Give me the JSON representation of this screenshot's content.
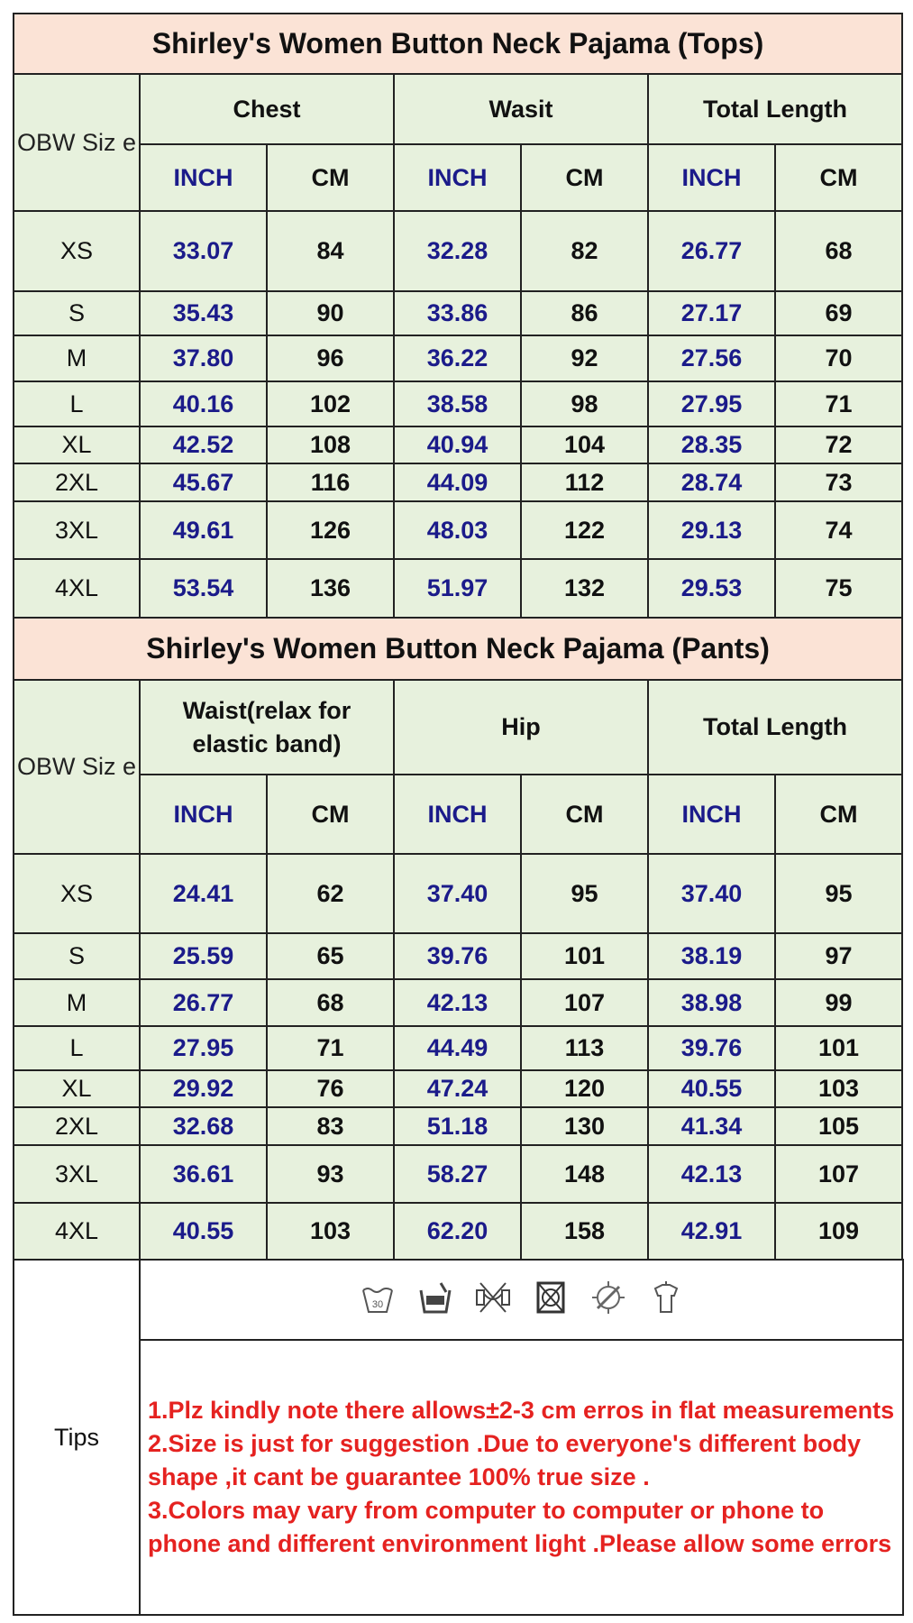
{
  "tops": {
    "title": "Shirley's Women Button Neck Pajama (Tops)",
    "size_label": "OBW Siz e",
    "groups": [
      "Chest",
      "Wasit",
      "Total Length"
    ],
    "units": [
      "INCH",
      "CM",
      "INCH",
      "CM",
      "INCH",
      "CM"
    ],
    "rows": [
      {
        "size": "XS",
        "v": [
          "33.07",
          "84",
          "32.28",
          "82",
          "26.77",
          "68"
        ]
      },
      {
        "size": "S",
        "v": [
          "35.43",
          "90",
          "33.86",
          "86",
          "27.17",
          "69"
        ]
      },
      {
        "size": "M",
        "v": [
          "37.80",
          "96",
          "36.22",
          "92",
          "27.56",
          "70"
        ]
      },
      {
        "size": "L",
        "v": [
          "40.16",
          "102",
          "38.58",
          "98",
          "27.95",
          "71"
        ]
      },
      {
        "size": "XL",
        "v": [
          "42.52",
          "108",
          "40.94",
          "104",
          "28.35",
          "72"
        ]
      },
      {
        "size": "2XL",
        "v": [
          "45.67",
          "116",
          "44.09",
          "112",
          "28.74",
          "73"
        ]
      },
      {
        "size": "3XL",
        "v": [
          "49.61",
          "126",
          "48.03",
          "122",
          "29.13",
          "74"
        ]
      },
      {
        "size": "4XL",
        "v": [
          "53.54",
          "136",
          "51.97",
          "132",
          "29.53",
          "75"
        ]
      }
    ]
  },
  "pants": {
    "title": "Shirley's Women Button Neck Pajama (Pants)",
    "size_label": "OBW Siz e",
    "groups": [
      "Waist(relax for elastic band)",
      "Hip",
      "Total Length"
    ],
    "units": [
      "INCH",
      "CM",
      "INCH",
      "CM",
      "INCH",
      "CM"
    ],
    "rows": [
      {
        "size": "XS",
        "v": [
          "24.41",
          "62",
          "37.40",
          "95",
          "37.40",
          "95"
        ]
      },
      {
        "size": "S",
        "v": [
          "25.59",
          "65",
          "39.76",
          "101",
          "38.19",
          "97"
        ]
      },
      {
        "size": "M",
        "v": [
          "26.77",
          "68",
          "42.13",
          "107",
          "38.98",
          "99"
        ]
      },
      {
        "size": "L",
        "v": [
          "27.95",
          "71",
          "44.49",
          "113",
          "39.76",
          "101"
        ]
      },
      {
        "size": "XL",
        "v": [
          "29.92",
          "76",
          "47.24",
          "120",
          "40.55",
          "103"
        ]
      },
      {
        "size": "2XL",
        "v": [
          "32.68",
          "83",
          "51.18",
          "130",
          "41.34",
          "105"
        ]
      },
      {
        "size": "3XL",
        "v": [
          "36.61",
          "93",
          "58.27",
          "148",
          "42.13",
          "107"
        ]
      },
      {
        "size": "4XL",
        "v": [
          "40.55",
          "103",
          "62.20",
          "158",
          "42.91",
          "109"
        ]
      }
    ]
  },
  "tips": {
    "label": "Tips",
    "care_icons": [
      "wash-30-icon",
      "hand-wash-icon",
      "do-not-wring-icon",
      "do-not-tumble-dry-icon",
      "do-not-iron-icon",
      "hang-dry-icon"
    ],
    "notes": [
      "1.Plz kindly note there allows±2-3 cm erros in flat measurements",
      "2.Size is just for suggestion .Due to everyone's different body shape ,it cant be guarantee 100% true size .",
      "3.Colors may  vary from computer to computer or phone to phone and different environment light .Please allow some errors"
    ]
  },
  "colors": {
    "title_bg": "#fbe3d6",
    "cell_bg": "#e7f1dd",
    "inch_text": "#1b1b8a",
    "note_text": "#e52220"
  }
}
